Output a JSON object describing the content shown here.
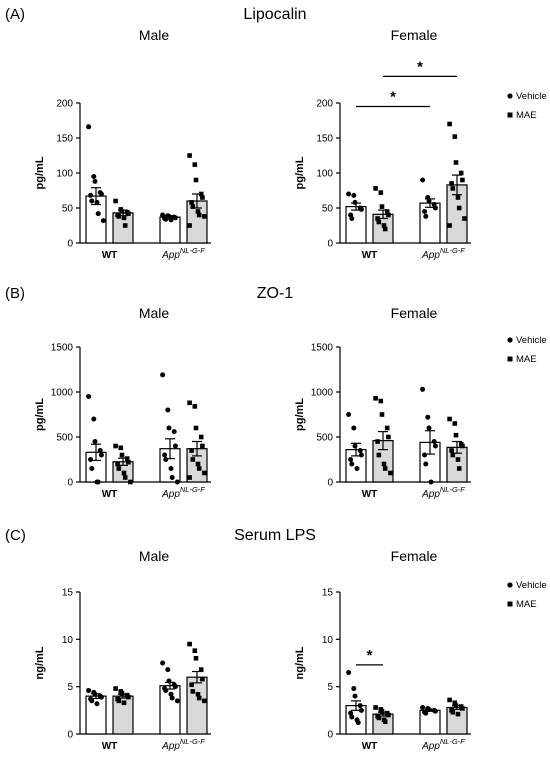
{
  "groups": [
    "WT",
    "App"
  ],
  "app_superscript": "NL-G-F",
  "legend": {
    "vehicle": "Vehicle",
    "mae": "MAE"
  },
  "colors": {
    "vehicle_fill": "#ffffff",
    "mae_fill": "#d9d9d9",
    "ink": "#000000"
  },
  "panels": [
    {
      "label": "(A)",
      "title": "Lipocalin",
      "ylabel": "pg/mL",
      "ylim": [
        0,
        200
      ],
      "ticks": [
        0,
        50,
        100,
        150,
        200
      ],
      "charts": [
        {
          "subtitle": "Male",
          "bars": [
            {
              "group": "WT",
              "condition": "Vehicle",
              "mean": 67,
              "sem": 12,
              "points": [
                166,
                95,
                88,
                72,
                70,
                68,
                60,
                58,
                42,
                32
              ]
            },
            {
              "group": "WT",
              "condition": "MAE",
              "mean": 43,
              "sem": 4,
              "points": [
                60,
                48,
                45,
                44,
                42,
                40,
                38,
                36,
                25
              ]
            },
            {
              "group": "App",
              "condition": "Vehicle",
              "mean": 37,
              "sem": 2,
              "points": [
                40,
                39,
                38,
                37,
                36,
                35,
                34,
                33
              ]
            },
            {
              "group": "App",
              "condition": "MAE",
              "mean": 60,
              "sem": 10,
              "points": [
                125,
                112,
                90,
                70,
                65,
                58,
                52,
                45,
                40,
                38,
                25
              ]
            }
          ],
          "significance": []
        },
        {
          "subtitle": "Female",
          "bars": [
            {
              "group": "WT",
              "condition": "Vehicle",
              "mean": 52,
              "sem": 5,
              "points": [
                70,
                68,
                58,
                50,
                48,
                40,
                35
              ]
            },
            {
              "group": "WT",
              "condition": "MAE",
              "mean": 41,
              "sem": 6,
              "points": [
                78,
                72,
                52,
                45,
                40,
                35,
                30,
                25,
                20
              ]
            },
            {
              "group": "App",
              "condition": "Vehicle",
              "mean": 57,
              "sem": 6,
              "points": [
                90,
                65,
                60,
                55,
                50,
                45,
                38
              ]
            },
            {
              "group": "App",
              "condition": "MAE",
              "mean": 83,
              "sem": 14,
              "points": [
                170,
                152,
                115,
                100,
                90,
                85,
                78,
                65,
                50,
                35,
                25
              ]
            }
          ],
          "significance": [
            {
              "label": "*",
              "from": 0,
              "to": 2,
              "y": 195
            },
            {
              "label": "*",
              "from": 1,
              "to": 3,
              "y": 238
            }
          ]
        }
      ]
    },
    {
      "label": "(B)",
      "title": "ZO-1",
      "ylabel": "pg/mL",
      "ylim": [
        0,
        1500
      ],
      "ticks": [
        0,
        500,
        1000,
        1500
      ],
      "charts": [
        {
          "subtitle": "Male",
          "bars": [
            {
              "group": "WT",
              "condition": "Vehicle",
              "mean": 330,
              "sem": 90,
              "points": [
                950,
                700,
                450,
                350,
                300,
                250,
                150,
                0,
                0
              ]
            },
            {
              "group": "WT",
              "condition": "MAE",
              "mean": 225,
              "sem": 40,
              "points": [
                400,
                380,
                300,
                260,
                220,
                200,
                150,
                100,
                50,
                0
              ]
            },
            {
              "group": "App",
              "condition": "Vehicle",
              "mean": 370,
              "sem": 110,
              "points": [
                1190,
                800,
                600,
                560,
                400,
                300,
                250,
                150,
                50,
                0
              ]
            },
            {
              "group": "App",
              "condition": "MAE",
              "mean": 370,
              "sem": 80,
              "points": [
                880,
                840,
                600,
                500,
                400,
                350,
                250,
                200,
                150,
                100,
                50
              ]
            }
          ],
          "significance": []
        },
        {
          "subtitle": "Female",
          "bars": [
            {
              "group": "WT",
              "condition": "Vehicle",
              "mean": 360,
              "sem": 70,
              "points": [
                750,
                600,
                400,
                350,
                300,
                250,
                200,
                150
              ]
            },
            {
              "group": "WT",
              "condition": "MAE",
              "mean": 460,
              "sem": 100,
              "points": [
                930,
                900,
                750,
                600,
                500,
                450,
                300,
                200,
                150,
                100
              ]
            },
            {
              "group": "App",
              "condition": "Vehicle",
              "mean": 440,
              "sem": 130,
              "points": [
                1030,
                720,
                600,
                450,
                400,
                300,
                200,
                0
              ]
            },
            {
              "group": "App",
              "condition": "MAE",
              "mean": 385,
              "sem": 65,
              "points": [
                700,
                650,
                520,
                420,
                400,
                350,
                300,
                250,
                150
              ]
            }
          ],
          "significance": []
        }
      ]
    },
    {
      "label": "(C)",
      "title": "Serum LPS",
      "ylabel": "ng/mL",
      "ylim": [
        0,
        15
      ],
      "ticks": [
        0,
        5,
        10,
        15
      ],
      "charts": [
        {
          "subtitle": "Male",
          "bars": [
            {
              "group": "WT",
              "condition": "Vehicle",
              "mean": 4.0,
              "sem": 0.25,
              "points": [
                4.6,
                4.4,
                4.2,
                4.0,
                3.9,
                3.7,
                3.5,
                3.2
              ]
            },
            {
              "group": "WT",
              "condition": "MAE",
              "mean": 4.0,
              "sem": 0.2,
              "points": [
                4.8,
                4.5,
                4.3,
                4.1,
                3.9,
                3.7,
                3.5,
                3.3
              ]
            },
            {
              "group": "App",
              "condition": "Vehicle",
              "mean": 5.1,
              "sem": 0.35,
              "points": [
                7.5,
                6.8,
                5.6,
                5.2,
                5.0,
                4.8,
                4.6,
                4.2,
                3.8,
                3.5
              ]
            },
            {
              "group": "App",
              "condition": "MAE",
              "mean": 6.0,
              "sem": 0.6,
              "points": [
                9.5,
                8.8,
                8.0,
                6.8,
                5.8,
                5.2,
                4.5,
                4.2,
                3.8,
                3.5
              ]
            }
          ],
          "significance": []
        },
        {
          "subtitle": "Female",
          "bars": [
            {
              "group": "WT",
              "condition": "Vehicle",
              "mean": 3.0,
              "sem": 0.5,
              "points": [
                6.5,
                4.8,
                4.0,
                3.0,
                2.5,
                2.2,
                1.8,
                1.5,
                1.2
              ]
            },
            {
              "group": "WT",
              "condition": "MAE",
              "mean": 2.1,
              "sem": 0.2,
              "points": [
                2.8,
                2.6,
                2.4,
                2.2,
                2.0,
                1.9,
                1.7,
                1.5,
                1.3
              ]
            },
            {
              "group": "App",
              "condition": "Vehicle",
              "mean": 2.5,
              "sem": 0.1,
              "points": [
                2.8,
                2.7,
                2.6,
                2.5,
                2.4,
                2.3,
                2.2
              ]
            },
            {
              "group": "App",
              "condition": "MAE",
              "mean": 2.8,
              "sem": 0.2,
              "points": [
                3.6,
                3.3,
                3.0,
                2.9,
                2.7,
                2.5,
                2.3,
                2.1
              ]
            }
          ],
          "significance": [
            {
              "label": "*",
              "from": 0,
              "to": 1,
              "y": 7.3
            }
          ]
        }
      ]
    }
  ],
  "chart_data": [
    {
      "type": "bar",
      "title": "Lipocalin",
      "subtitle": "Male",
      "ylabel": "pg/mL",
      "ylim": [
        0,
        200
      ],
      "categories": [
        "WT",
        "AppNL-G-F"
      ],
      "series": [
        {
          "name": "Vehicle",
          "values": [
            67,
            37
          ]
        },
        {
          "name": "MAE",
          "values": [
            43,
            60
          ]
        }
      ]
    },
    {
      "type": "bar",
      "title": "Lipocalin",
      "subtitle": "Female",
      "ylabel": "pg/mL",
      "ylim": [
        0,
        200
      ],
      "categories": [
        "WT",
        "AppNL-G-F"
      ],
      "series": [
        {
          "name": "Vehicle",
          "values": [
            52,
            57
          ]
        },
        {
          "name": "MAE",
          "values": [
            41,
            83
          ]
        }
      ]
    },
    {
      "type": "bar",
      "title": "ZO-1",
      "subtitle": "Male",
      "ylabel": "pg/mL",
      "ylim": [
        0,
        1500
      ],
      "categories": [
        "WT",
        "AppNL-G-F"
      ],
      "series": [
        {
          "name": "Vehicle",
          "values": [
            330,
            370
          ]
        },
        {
          "name": "MAE",
          "values": [
            225,
            370
          ]
        }
      ]
    },
    {
      "type": "bar",
      "title": "ZO-1",
      "subtitle": "Female",
      "ylabel": "pg/mL",
      "ylim": [
        0,
        1500
      ],
      "categories": [
        "WT",
        "AppNL-G-F"
      ],
      "series": [
        {
          "name": "Vehicle",
          "values": [
            360,
            440
          ]
        },
        {
          "name": "MAE",
          "values": [
            460,
            385
          ]
        }
      ]
    },
    {
      "type": "bar",
      "title": "Serum LPS",
      "subtitle": "Male",
      "ylabel": "ng/mL",
      "ylim": [
        0,
        15
      ],
      "categories": [
        "WT",
        "AppNL-G-F"
      ],
      "series": [
        {
          "name": "Vehicle",
          "values": [
            4.0,
            5.1
          ]
        },
        {
          "name": "MAE",
          "values": [
            4.0,
            6.0
          ]
        }
      ]
    },
    {
      "type": "bar",
      "title": "Serum LPS",
      "subtitle": "Female",
      "ylabel": "ng/mL",
      "ylim": [
        0,
        15
      ],
      "categories": [
        "WT",
        "AppNL-G-F"
      ],
      "series": [
        {
          "name": "Vehicle",
          "values": [
            3.0,
            2.5
          ]
        },
        {
          "name": "MAE",
          "values": [
            2.1,
            2.8
          ]
        }
      ]
    }
  ]
}
